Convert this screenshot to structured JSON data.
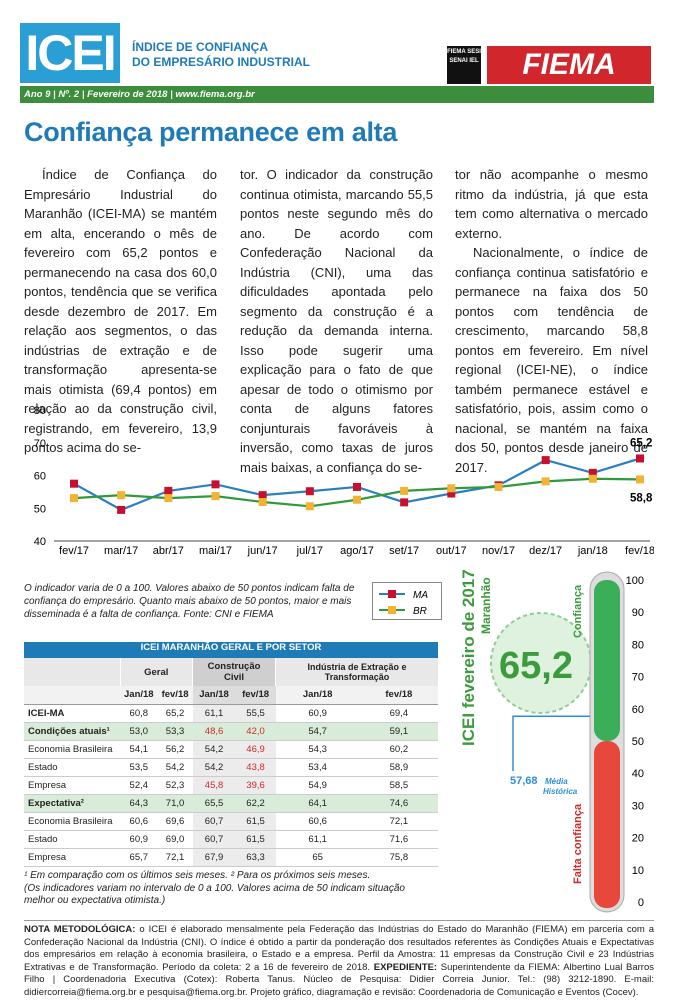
{
  "header": {
    "logo": "ICEI",
    "title_line1": "Índice de Confiança",
    "title_line2": "do Empresário Industrial",
    "fiema_small": "FIEMA SESI SENAI IEL",
    "brand": "FIEMA",
    "issue": "Ano 9 | Nº. 2 | Fevereiro de 2018 | www.fiema.org.br"
  },
  "article": {
    "title": "Confiança permanece em alta",
    "col1": "Índice de Confiança do Empresário Industrial do Maranhão (ICEI-MA) se mantém em alta, encerando o mês de fevereiro com 65,2 pontos e permanecendo na casa dos 60,0 pontos, tendência que se verifica desde dezembro de 2017. Em relação aos segmentos, o das indústrias de extração e de transformação apresenta-se mais otimista (69,4 pontos) em relação ao da construção civil, registrando, em fevereiro, 13,9 pontos acima do se-",
    "col2": "tor. O indicador da construção continua otimista, marcando 55,5 pontos neste segundo mês do ano. De acordo com Confederação Nacional da Indústria (CNI), uma das dificuldades apontada pelo segmento da construção é a redução da demanda interna. Isso pode sugerir uma explicação para o fato de que apesar de todo o otimismo por conta de alguns fatores conjunturais favoráveis à inversão, como taxas de juros mais baixas, a confiança do se-",
    "col3a": "tor não acompanhe o mesmo ritmo da indústria, já que esta tem como alternativa o mercado externo.",
    "col3b": "Nacionalmente, o índice de confiança continua satisfatório e permanece na faixa dos 50 pontos com tendência de crescimento, marcando 58,8 pontos em fevereiro. Em nível regional (ICEI-NE), o índice também permanece estável e satisfatório, pois, assim como o nacional, se mantém na faixa dos 50, pontos desde janeiro de 2017."
  },
  "chart_data": {
    "type": "line",
    "categories": [
      "fev/17",
      "mar/17",
      "abr/17",
      "mai/17",
      "jun/17",
      "jul/17",
      "ago/17",
      "set/17",
      "out/17",
      "nov/17",
      "dez/17",
      "jan/18",
      "fev/18"
    ],
    "series": [
      {
        "name": "MA",
        "color": "#c8102e",
        "line": "#2a7fc0",
        "values": [
          57.5,
          49.5,
          55.3,
          57.3,
          54.0,
          55.2,
          56.5,
          51.8,
          54.5,
          57.0,
          64.7,
          60.8,
          65.2
        ]
      },
      {
        "name": "BR",
        "color": "#f2b233",
        "line": "#2e9a3a",
        "values": [
          53.1,
          54.0,
          53.1,
          53.7,
          51.9,
          50.6,
          52.6,
          55.3,
          56.1,
          56.5,
          58.2,
          59.0,
          58.8
        ]
      }
    ],
    "ylim": [
      40,
      80
    ],
    "yticks": [
      "80",
      "70",
      "60",
      "50",
      "40"
    ],
    "end_labels": [
      "65,2",
      "58,8"
    ]
  },
  "chart_note": "O indicador varia de 0 a 100. Valores abaixo de 50 pontos indicam falta de confiança do empresário. Quanto mais abaixo de 50 pontos, maior e mais disseminada é a falta de confiança. Fonte: CNI e FIEMA",
  "table": {
    "caption": "ICEI MARANHÃO GERAL E POR SETOR",
    "groups": [
      "Geral",
      "Construção Civil",
      "Indústria de Extração e Transformação"
    ],
    "subheads": [
      "Jan/18",
      "fev/18",
      "Jan/18",
      "fev/18",
      "Jan/18",
      "fev/18"
    ],
    "rows": [
      {
        "label": "ICEI-MA",
        "bold": true,
        "v": [
          "60,8",
          "65,2",
          "61,1",
          "55,5",
          "60,9",
          "69,4"
        ]
      },
      {
        "label": "Condições atuais¹",
        "bold": true,
        "shade": true,
        "v": [
          "53,0",
          "53,3",
          "48,6",
          "42,0",
          "54,7",
          "59,1"
        ],
        "red": [
          2,
          3
        ]
      },
      {
        "label": "Economia Brasileira",
        "v": [
          "54,1",
          "56,2",
          "54,2",
          "46,9",
          "54,3",
          "60,2"
        ],
        "red": [
          3
        ]
      },
      {
        "label": "Estado",
        "v": [
          "53,5",
          "54,2",
          "54,2",
          "43,8",
          "53,4",
          "58,9"
        ],
        "red": [
          3
        ]
      },
      {
        "label": "Empresa",
        "v": [
          "52,4",
          "52,3",
          "45,8",
          "39,6",
          "54,9",
          "58,5"
        ],
        "red": [
          2,
          3
        ]
      },
      {
        "label": "Expectativa²",
        "bold": true,
        "shade": true,
        "v": [
          "64,3",
          "71,0",
          "65,5",
          "62,2",
          "64,1",
          "74,6"
        ]
      },
      {
        "label": "Economia Brasileira",
        "v": [
          "60,6",
          "69,6",
          "60,7",
          "61,5",
          "60,6",
          "72,1"
        ]
      },
      {
        "label": "Estado",
        "v": [
          "60,9",
          "69,0",
          "60,7",
          "61,5",
          "61,1",
          "71,6"
        ]
      },
      {
        "label": "Empresa",
        "v": [
          "65,7",
          "72,1",
          "67,9",
          "63,3",
          "65",
          "75,8"
        ]
      }
    ],
    "footnote1": "¹ Em comparação com os últimos seis meses. ² Para os próximos seis meses.",
    "footnote2": "(Os indicadores variam no intervalo de 0 a 100. Valores acima de 50 indicam situação melhor ou expectativa otimista.)"
  },
  "gauge": {
    "vertical_title": "ICEI fevereiro de 2017",
    "vertical_sub": "Maranhão",
    "value": "65,2",
    "level": 65.2,
    "media": "57,68",
    "media_label": "Média",
    "media_label2": "Histórica",
    "top_label": "Confiança",
    "bottom_label": "Falta confiança",
    "ticks": [
      "100",
      "90",
      "80",
      "70",
      "60",
      "50",
      "40",
      "30",
      "20",
      "10",
      "0"
    ]
  },
  "methodology": {
    "label": "NOTA METODOLÓGICA:",
    "text": " o ICEI é elaborado mensalmente pela Federação das Indústrias do Estado do Maranhão (FIEMA) em parceria com a Confederação Nacional da Indústria (CNI). O índice é obtido a partir da ponderação dos resultados referentes às Condições Atuais e Expectativas dos empresários em relação à economia brasileira, o Estado e a empresa. Perfil da Amostra: 11 empresas da Construção Civil e 23 Indústrias Extrativas e de Transformação. Período da coleta: 2 a 16 de fevereiro de 2018. ",
    "label2": "EXPEDIENTE:",
    "text2": " Superintendente da FIEMA: Albertino Lual Barros Filho | Coordenadoria Executiva (Cotex): Roberta Tanus. Núcleo de Pesquisa: Didier Correia Junior. Tel.: (98) 3212-1890. E-mail: didiercorreia@fiema.org.br e pesquisa@fiema.org.br. Projeto gráfico, diagramação e revisão: Coordenadoria de Comunicação e Eventos (Cocev)."
  }
}
